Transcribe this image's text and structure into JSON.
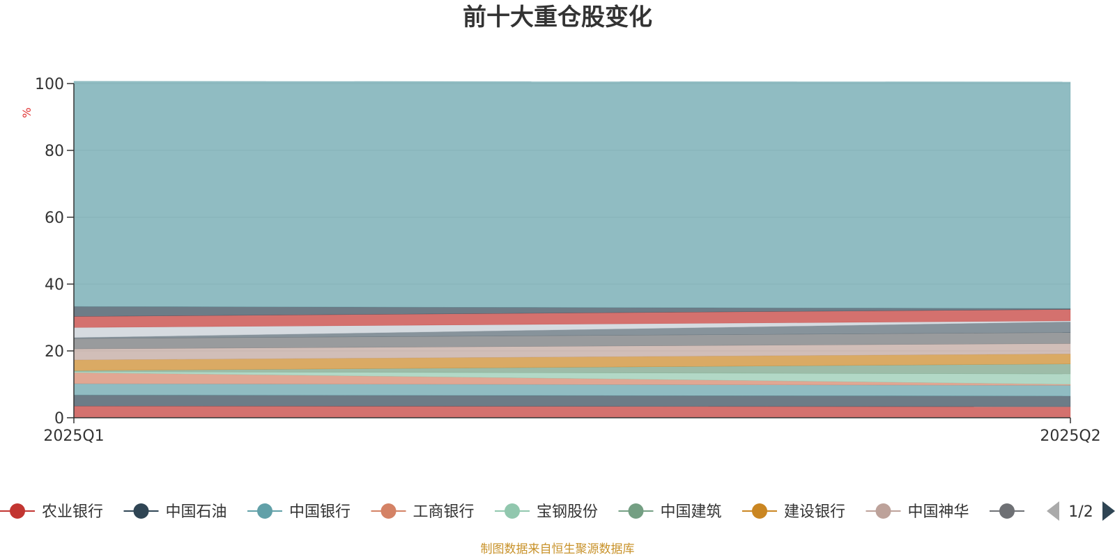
{
  "chart_data": {
    "type": "area",
    "title": "前十大重仓股变化",
    "unit": "%",
    "categories": [
      "2025Q1",
      "2025Q2"
    ],
    "ylim": [
      0,
      100
    ],
    "yticks": [
      0,
      20,
      40,
      60,
      80,
      100
    ],
    "grid": true,
    "stacked": true,
    "series": [
      {
        "name": "农业银行",
        "values": [
          3.5,
          3.3
        ],
        "color": "#c23531",
        "legend_visible": true
      },
      {
        "name": "中国石油",
        "values": [
          3.3,
          3.2
        ],
        "color": "#2f4554",
        "legend_visible": true
      },
      {
        "name": "中国银行",
        "values": [
          3.4,
          3.2
        ],
        "color": "#61a0a8",
        "legend_visible": true
      },
      {
        "name": "工商银行",
        "values": [
          3.3,
          0.3
        ],
        "color": "#d48265",
        "legend_visible": true
      },
      {
        "name": "宝钢股份",
        "values": [
          0.3,
          3.1
        ],
        "color": "#91c7ae",
        "legend_visible": true
      },
      {
        "name": "中国建筑",
        "values": [
          0.3,
          3.0
        ],
        "color": "#749f83",
        "legend_visible": true
      },
      {
        "name": "建设银行",
        "values": [
          3.2,
          3.0
        ],
        "color": "#ca8622",
        "legend_visible": true
      },
      {
        "name": "中国神华",
        "values": [
          3.3,
          3.1
        ],
        "color": "#bda29a",
        "legend_visible": true
      },
      {
        "name": "",
        "values": [
          3.1,
          3.3
        ],
        "color": "#6e7074",
        "legend_visible": true
      },
      {
        "name": "",
        "values": [
          0.3,
          3.2
        ],
        "color": "#546570",
        "legend_visible": false
      },
      {
        "name": "",
        "values": [
          3.0,
          0.3
        ],
        "color": "#c4ccd3",
        "legend_visible": false
      },
      {
        "name": "",
        "values": [
          3.3,
          3.4
        ],
        "color": "#c23531",
        "legend_visible": false
      },
      {
        "name": "",
        "values": [
          3.0,
          0.3
        ],
        "color": "#2f4554",
        "legend_visible": false
      },
      {
        "name": "",
        "values": [
          67.4,
          67.8
        ],
        "color": "#61a0a8",
        "legend_visible": false
      }
    ],
    "legend_position": "bottom",
    "legend_page": "1/2"
  },
  "source_note": "制图数据来自恒生聚源数据库",
  "icons": {
    "legend_prev": "arrow-left-icon",
    "legend_next": "arrow-right-icon"
  }
}
